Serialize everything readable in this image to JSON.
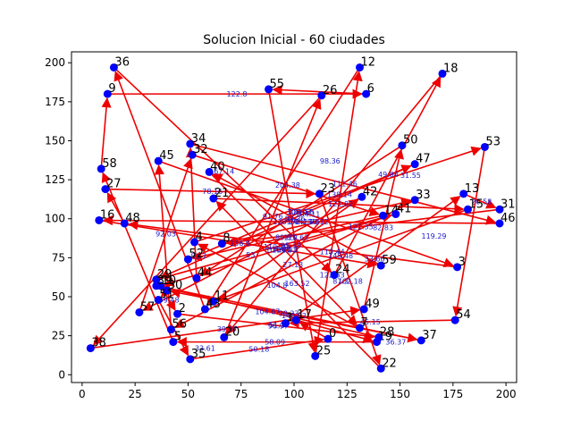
{
  "chart_data": {
    "type": "scatter",
    "title": "Solucion Inicial - 60 ciudades",
    "xlabel": "",
    "ylabel": "",
    "xlim": [
      -5,
      205
    ],
    "ylim": [
      -5,
      207
    ],
    "x_ticks": [
      0,
      25,
      50,
      75,
      100,
      125,
      150,
      175,
      200
    ],
    "y_ticks": [
      0,
      25,
      50,
      75,
      100,
      125,
      150,
      175,
      200
    ],
    "grid": false,
    "point_color": "#0000ff",
    "edge_color": "#ee0000",
    "distance_label_color": "#1a1acc",
    "cities": [
      {
        "id": "0",
        "x": 116,
        "y": 23
      },
      {
        "id": "1",
        "x": 96,
        "y": 33
      },
      {
        "id": "2",
        "x": 45,
        "y": 39
      },
      {
        "id": "3",
        "x": 177,
        "y": 69
      },
      {
        "id": "4",
        "x": 53,
        "y": 85
      },
      {
        "id": "5",
        "x": 43,
        "y": 21
      },
      {
        "id": "6",
        "x": 134,
        "y": 180
      },
      {
        "id": "7",
        "x": 131,
        "y": 30
      },
      {
        "id": "8",
        "x": 66,
        "y": 84
      },
      {
        "id": "9",
        "x": 12,
        "y": 180
      },
      {
        "id": "10",
        "x": 37,
        "y": 57
      },
      {
        "id": "11",
        "x": 62,
        "y": 47
      },
      {
        "id": "12",
        "x": 131,
        "y": 197
      },
      {
        "id": "13",
        "x": 180,
        "y": 116
      },
      {
        "id": "14",
        "x": 142,
        "y": 102
      },
      {
        "id": "15",
        "x": 182,
        "y": 106
      },
      {
        "id": "16",
        "x": 8,
        "y": 99
      },
      {
        "id": "17",
        "x": 101,
        "y": 35
      },
      {
        "id": "18",
        "x": 170,
        "y": 193
      },
      {
        "id": "19",
        "x": 139,
        "y": 21
      },
      {
        "id": "20",
        "x": 67,
        "y": 24
      },
      {
        "id": "21",
        "x": 62,
        "y": 113
      },
      {
        "id": "22",
        "x": 141,
        "y": 4
      },
      {
        "id": "23",
        "x": 112,
        "y": 116
      },
      {
        "id": "24",
        "x": 119,
        "y": 64
      },
      {
        "id": "25",
        "x": 110,
        "y": 12
      },
      {
        "id": "26",
        "x": 113,
        "y": 179
      },
      {
        "id": "27",
        "x": 11,
        "y": 119
      },
      {
        "id": "28",
        "x": 140,
        "y": 24
      },
      {
        "id": "29",
        "x": 35,
        "y": 61
      },
      {
        "id": "30",
        "x": 40,
        "y": 54
      },
      {
        "id": "31",
        "x": 197,
        "y": 106
      },
      {
        "id": "32",
        "x": 52,
        "y": 141
      },
      {
        "id": "33",
        "x": 157,
        "y": 112
      },
      {
        "id": "34",
        "x": 51,
        "y": 148
      },
      {
        "id": "35",
        "x": 51,
        "y": 10
      },
      {
        "id": "36",
        "x": 15,
        "y": 197
      },
      {
        "id": "37",
        "x": 160,
        "y": 22
      },
      {
        "id": "38",
        "x": 4,
        "y": 17
      },
      {
        "id": "39",
        "x": 35,
        "y": 57
      },
      {
        "id": "40",
        "x": 60,
        "y": 130
      },
      {
        "id": "41",
        "x": 148,
        "y": 103
      },
      {
        "id": "42",
        "x": 132,
        "y": 114
      },
      {
        "id": "43",
        "x": 58,
        "y": 42
      },
      {
        "id": "44",
        "x": 54,
        "y": 62
      },
      {
        "id": "45",
        "x": 36,
        "y": 137
      },
      {
        "id": "46",
        "x": 197,
        "y": 97
      },
      {
        "id": "47",
        "x": 157,
        "y": 135
      },
      {
        "id": "48",
        "x": 20,
        "y": 97
      },
      {
        "id": "49",
        "x": 133,
        "y": 42
      },
      {
        "id": "50",
        "x": 151,
        "y": 147
      },
      {
        "id": "51",
        "x": 36,
        "y": 48
      },
      {
        "id": "52",
        "x": 50,
        "y": 74
      },
      {
        "id": "53",
        "x": 190,
        "y": 146
      },
      {
        "id": "54",
        "x": 176,
        "y": 35
      },
      {
        "id": "55",
        "x": 88,
        "y": 183
      },
      {
        "id": "56",
        "x": 42,
        "y": 29
      },
      {
        "id": "57",
        "x": 27,
        "y": 40
      },
      {
        "id": "58",
        "x": 9,
        "y": 132
      },
      {
        "id": "59",
        "x": 141,
        "y": 70
      }
    ],
    "edges": [
      {
        "from": "9",
        "to": "6",
        "label": "122.8"
      },
      {
        "from": "6",
        "to": "55",
        "label": ""
      },
      {
        "from": "55",
        "to": "25",
        "label": ""
      },
      {
        "from": "25",
        "to": "12",
        "label": ""
      },
      {
        "from": "12",
        "to": "43",
        "label": ""
      },
      {
        "from": "43",
        "to": "36",
        "label": ""
      },
      {
        "from": "36",
        "to": "24",
        "label": "67.14"
      },
      {
        "from": "24",
        "to": "18",
        "label": "49.84"
      },
      {
        "from": "18",
        "to": "20",
        "label": ""
      },
      {
        "from": "20",
        "to": "26",
        "label": "91.76"
      },
      {
        "from": "26",
        "to": "38",
        "label": ""
      },
      {
        "from": "38",
        "to": "49",
        "label": "39.97"
      },
      {
        "from": "49",
        "to": "50",
        "label": "82.83"
      },
      {
        "from": "50",
        "to": "44",
        "label": "108.97"
      },
      {
        "from": "44",
        "to": "34",
        "label": ""
      },
      {
        "from": "34",
        "to": "46",
        "label": "111.46"
      },
      {
        "from": "46",
        "to": "16",
        "label": "171.13"
      },
      {
        "from": "16",
        "to": "59",
        "label": "136.9"
      },
      {
        "from": "59",
        "to": "40",
        "label": "93.36"
      },
      {
        "from": "40",
        "to": "7",
        "label": "101.91"
      },
      {
        "from": "7",
        "to": "4",
        "label": "104.8"
      },
      {
        "from": "4",
        "to": "53",
        "label": "138.14"
      },
      {
        "from": "53",
        "to": "54",
        "label": ""
      },
      {
        "from": "54",
        "to": "1",
        "label": "45.15"
      },
      {
        "from": "1",
        "to": "13",
        "label": "33.66"
      },
      {
        "from": "13",
        "to": "31",
        "label": "20.58"
      },
      {
        "from": "31",
        "to": "8",
        "label": "121.35"
      },
      {
        "from": "8",
        "to": "33",
        "label": "90.12"
      },
      {
        "from": "33",
        "to": "56",
        "label": "27.13"
      },
      {
        "from": "56",
        "to": "45",
        "label": ""
      },
      {
        "from": "45",
        "to": "3",
        "label": "104.11"
      },
      {
        "from": "3",
        "to": "48",
        "label": "95.38"
      },
      {
        "from": "48",
        "to": "27",
        "label": ""
      },
      {
        "from": "27",
        "to": "23",
        "label": "78.16"
      },
      {
        "from": "23",
        "to": "22",
        "label": "102.18"
      },
      {
        "from": "22",
        "to": "21",
        "label": "163.52"
      },
      {
        "from": "21",
        "to": "15",
        "label": "121.82"
      },
      {
        "from": "15",
        "to": "11",
        "label": "145.48"
      },
      {
        "from": "11",
        "to": "42",
        "label": "100.3"
      },
      {
        "from": "42",
        "to": "57",
        "label": "53"
      },
      {
        "from": "57",
        "to": "32",
        "label": "92.03"
      },
      {
        "from": "32",
        "to": "14",
        "label": "204.38"
      },
      {
        "from": "14",
        "to": "52",
        "label": "89.83"
      },
      {
        "from": "52",
        "to": "47",
        "label": "181.58"
      },
      {
        "from": "47",
        "to": "29",
        "label": "128.24"
      },
      {
        "from": "29",
        "to": "41",
        "label": "110.29"
      },
      {
        "from": "41",
        "to": "10",
        "label": "104.47"
      },
      {
        "from": "10",
        "to": "2",
        "label": "59.48"
      },
      {
        "from": "2",
        "to": "28",
        "label": "96.97"
      },
      {
        "from": "28",
        "to": "39",
        "label": "104.67"
      },
      {
        "from": "39",
        "to": "37",
        "label": "90.23"
      },
      {
        "from": "37",
        "to": "30",
        "label": "148.02"
      },
      {
        "from": "30",
        "to": "51",
        "label": ""
      },
      {
        "from": "51",
        "to": "35",
        "label": ""
      },
      {
        "from": "35",
        "to": "0",
        "label": "50.18"
      },
      {
        "from": "0",
        "to": "17",
        "label": ""
      },
      {
        "from": "17",
        "to": "19",
        "label": ""
      },
      {
        "from": "19",
        "to": "5",
        "label": "58.09"
      },
      {
        "from": "5",
        "to": "58",
        "label": ""
      },
      {
        "from": "58",
        "to": "9",
        "label": ""
      }
    ],
    "extra_labels": [
      {
        "x": 117,
        "y": 137,
        "label": "98.36"
      },
      {
        "x": 166,
        "y": 89,
        "label": "119.29"
      },
      {
        "x": 106,
        "y": 98,
        "label": "142.79"
      },
      {
        "x": 122,
        "y": 60,
        "label": "87.3"
      },
      {
        "x": 101,
        "y": 88,
        "label": "120.62"
      },
      {
        "x": 58,
        "y": 17,
        "label": "33.61"
      },
      {
        "x": 93,
        "y": 32,
        "label": "51.17"
      },
      {
        "x": 155,
        "y": 128,
        "label": "31.55"
      },
      {
        "x": 148,
        "y": 21,
        "label": "36.37"
      },
      {
        "x": 118,
        "y": 64,
        "label": "122.63"
      },
      {
        "x": 55,
        "y": 76,
        "label": "51.7"
      },
      {
        "x": 118,
        "y": 79,
        "label": "110.44"
      }
    ]
  }
}
